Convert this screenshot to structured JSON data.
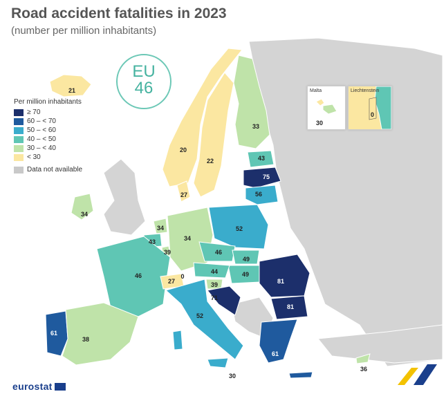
{
  "title": "Road accident fatalities in 2023",
  "subtitle": "(number per million inhabitants)",
  "eu_badge": {
    "label": "EU",
    "value": "46"
  },
  "legend": {
    "title": "Per million inhabitants",
    "items": [
      {
        "label": "≥ 70",
        "color": "#1c2f6b"
      },
      {
        "label": "60 – < 70",
        "color": "#1f5a9e"
      },
      {
        "label": "50 – < 60",
        "color": "#3aaccc"
      },
      {
        "label": "40 – < 50",
        "color": "#5fc6b4"
      },
      {
        "label": "30 – < 40",
        "color": "#bfe3a9"
      },
      {
        "label": "< 30",
        "color": "#fbe7a1"
      }
    ],
    "na_label": "Data not available",
    "na_color": "#c9c9c9"
  },
  "insets": {
    "malta": {
      "label": "Malta",
      "value": "30"
    },
    "liechtenstein": {
      "label": "Liechtenstein",
      "value": "0"
    }
  },
  "countries": [
    {
      "name": "Iceland",
      "value": "21"
    },
    {
      "name": "Norway",
      "value": "20"
    },
    {
      "name": "Sweden",
      "value": "22"
    },
    {
      "name": "Finland",
      "value": "33"
    },
    {
      "name": "Estonia",
      "value": "43"
    },
    {
      "name": "Latvia",
      "value": "75"
    },
    {
      "name": "Lithuania",
      "value": "56"
    },
    {
      "name": "Denmark",
      "value": "27"
    },
    {
      "name": "Ireland",
      "value": "34"
    },
    {
      "name": "Netherlands",
      "value": "34"
    },
    {
      "name": "Belgium",
      "value": "43"
    },
    {
      "name": "Luxembourg",
      "value": "39"
    },
    {
      "name": "Germany",
      "value": "34"
    },
    {
      "name": "Poland",
      "value": "52"
    },
    {
      "name": "Czechia",
      "value": "46"
    },
    {
      "name": "Slovakia",
      "value": "49"
    },
    {
      "name": "Hungary",
      "value": "49"
    },
    {
      "name": "Austria",
      "value": "44"
    },
    {
      "name": "Slovenia",
      "value": "39"
    },
    {
      "name": "Croatia",
      "value": "71"
    },
    {
      "name": "Romania",
      "value": "81"
    },
    {
      "name": "Bulgaria",
      "value": "81"
    },
    {
      "name": "France",
      "value": "46"
    },
    {
      "name": "Switzerland",
      "value": "27"
    },
    {
      "name": "Liechtenstein",
      "value": "0"
    },
    {
      "name": "Italy",
      "value": "52"
    },
    {
      "name": "Portugal",
      "value": "61"
    },
    {
      "name": "Spain",
      "value": "38"
    },
    {
      "name": "Greece",
      "value": "61"
    },
    {
      "name": "Malta",
      "value": "30"
    },
    {
      "name": "Cyprus",
      "value": "36"
    }
  ],
  "footer": {
    "brand": "eurostat"
  }
}
